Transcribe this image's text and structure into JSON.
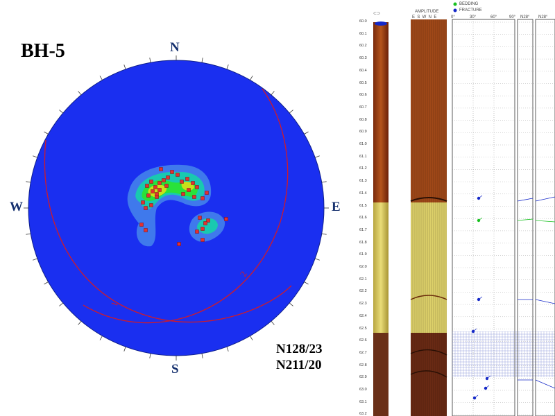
{
  "title": "BH-5",
  "compass": {
    "n": "N",
    "s": "S",
    "e": "E",
    "w": "W"
  },
  "orientations": [
    "N128/23",
    "N211/20"
  ],
  "log": {
    "header_amplitude": "AMPLITUDE",
    "header_dirs": "E  S  W  N  E",
    "header_dip_ticks": [
      "0°",
      "30°",
      "60°",
      "90°"
    ],
    "legend_bedding": "BEDDING",
    "legend_fracture": "FRACTURE",
    "col_headers": [
      "N28°",
      "N28°"
    ],
    "depths": [
      "60.0",
      "60.1",
      "60.2",
      "60.3",
      "60.4",
      "60.5",
      "60.6",
      "60.7",
      "60.8",
      "60.9",
      "61.0",
      "61.1",
      "61.2",
      "61.3",
      "61.4",
      "61.5",
      "61.6",
      "61.7",
      "61.8",
      "61.9",
      "62.0",
      "62.1",
      "62.2",
      "62.3",
      "62.4",
      "62.5",
      "62.6",
      "62.7",
      "62.8",
      "62.9",
      "63.0",
      "63.1",
      "63.2"
    ]
  },
  "colors": {
    "net": "#1a2ff0",
    "contour_outer": "#3f79ec",
    "contour_mid": "#19c9b0",
    "contour_high": "#29e23a",
    "contour_peak": "#c9e01a",
    "pole": "#e23030",
    "plane": "#d01a2a",
    "bedding": "#18c020",
    "fracture": "#1428c8"
  }
}
